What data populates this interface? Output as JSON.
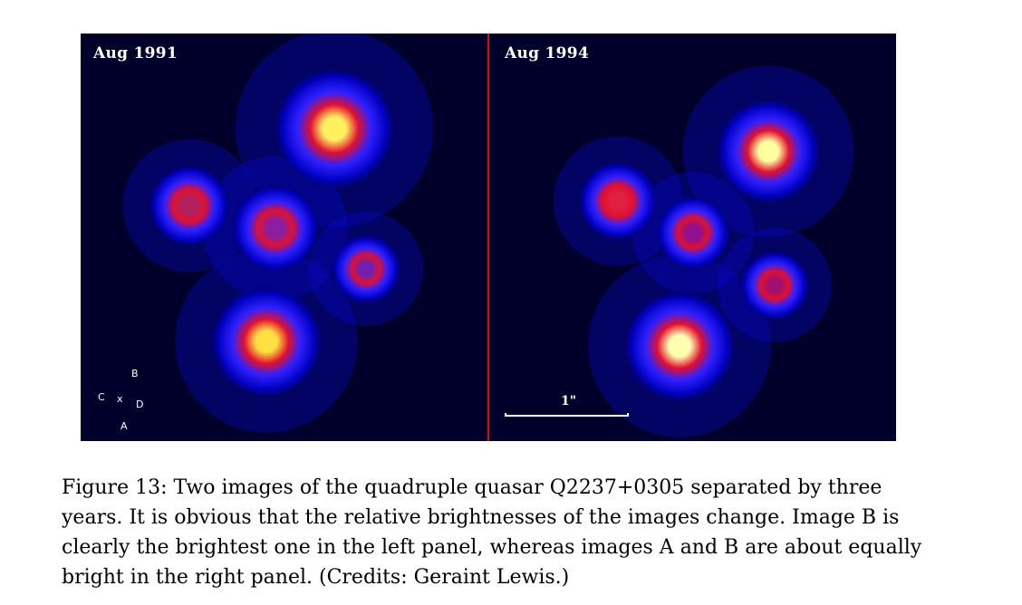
{
  "figure": {
    "panels": [
      {
        "label": "Aug 1991",
        "blobs": [
          {
            "cx": 280,
            "cy": 105,
            "r": 52,
            "core": "#fff060"
          },
          {
            "cx": 205,
            "cy": 340,
            "r": 48,
            "core": "#ffe040"
          },
          {
            "cx": 120,
            "cy": 190,
            "r": 35,
            "core": "#b02060"
          },
          {
            "cx": 215,
            "cy": 215,
            "r": 38,
            "core": "#8a20a0"
          },
          {
            "cx": 315,
            "cy": 260,
            "r": 30,
            "core": "#7020b0"
          }
        ],
        "legend": {
          "B": "B",
          "C": "C",
          "x": "x",
          "D": "D",
          "A": "A"
        }
      },
      {
        "label": "Aug 1994",
        "blobs": [
          {
            "cx": 308,
            "cy": 130,
            "r": 45,
            "core": "#ffffa0"
          },
          {
            "cx": 210,
            "cy": 345,
            "r": 48,
            "core": "#ffffb0"
          },
          {
            "cx": 142,
            "cy": 185,
            "r": 34,
            "core": "#e02040"
          },
          {
            "cx": 225,
            "cy": 220,
            "r": 32,
            "core": "#901090"
          },
          {
            "cx": 315,
            "cy": 278,
            "r": 30,
            "core": "#a01070"
          }
        ],
        "scale_label": "1\""
      }
    ]
  },
  "caption": "Figure 13: Two images of the quadruple quasar Q2237+0305 separated by three years. It is obvious that the relative brightnesses of the images change. Image B is clearly the brightest one in the left panel, whereas images A and B are about equally bright in the right panel. (Credits: Geraint Lewis.)"
}
